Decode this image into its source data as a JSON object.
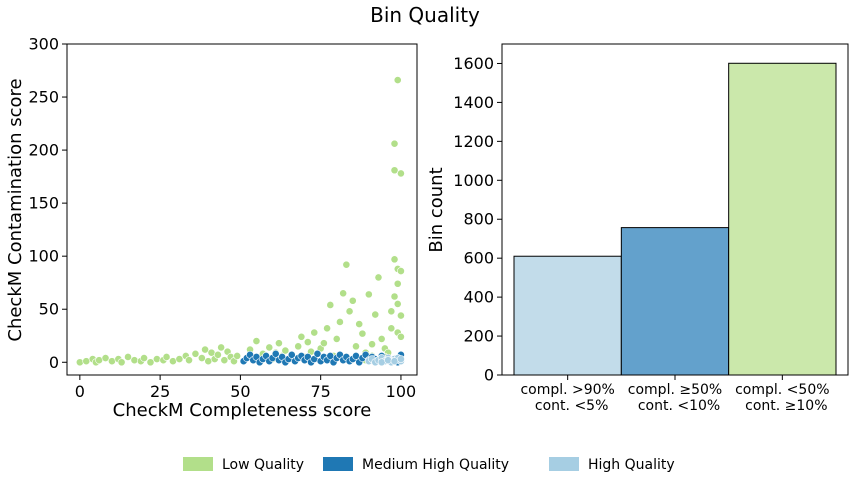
{
  "title": "Bin Quality",
  "colors": {
    "low": "#b2df8a",
    "medium": "#1f78b4",
    "high": "#a6cee3",
    "low_bar": "#cbe8ab",
    "medium_bar": "#63a1cc",
    "high_bar": "#c2dcea"
  },
  "legend": [
    {
      "label": "Low Quality",
      "color": "#b2df8a"
    },
    {
      "label": "Medium High Quality",
      "color": "#1f78b4"
    },
    {
      "label": "High Quality",
      "color": "#a6cee3"
    }
  ],
  "chart_data": [
    {
      "type": "scatter",
      "xlabel": "CheckM Completeness score",
      "ylabel": "CheckM Contamination score",
      "xlim": [
        -4,
        105
      ],
      "ylim": [
        -12,
        300
      ],
      "xticks": [
        "0",
        "25",
        "50",
        "75",
        "100"
      ],
      "yticks": [
        "0",
        "50",
        "100",
        "150",
        "200",
        "250",
        "300"
      ],
      "grid": false,
      "series": [
        {
          "name": "Low Quality",
          "color": "#b2df8a",
          "points": [
            [
              0,
              0
            ],
            [
              2,
              1
            ],
            [
              4,
              3
            ],
            [
              5,
              0
            ],
            [
              6,
              2
            ],
            [
              8,
              4
            ],
            [
              10,
              1
            ],
            [
              12,
              3
            ],
            [
              13,
              0
            ],
            [
              15,
              5
            ],
            [
              17,
              2
            ],
            [
              19,
              1
            ],
            [
              20,
              4
            ],
            [
              22,
              0
            ],
            [
              24,
              3
            ],
            [
              26,
              2
            ],
            [
              27,
              5
            ],
            [
              29,
              1
            ],
            [
              31,
              3
            ],
            [
              33,
              6
            ],
            [
              34,
              2
            ],
            [
              36,
              8
            ],
            [
              38,
              4
            ],
            [
              39,
              12
            ],
            [
              40,
              1
            ],
            [
              41,
              9
            ],
            [
              42,
              3
            ],
            [
              43,
              7
            ],
            [
              44,
              14
            ],
            [
              45,
              2
            ],
            [
              46,
              10
            ],
            [
              47,
              5
            ],
            [
              48,
              1
            ],
            [
              49,
              6
            ],
            [
              53,
              12
            ],
            [
              55,
              20
            ],
            [
              57,
              8
            ],
            [
              59,
              14
            ],
            [
              60,
              3
            ],
            [
              61,
              9
            ],
            [
              62,
              18
            ],
            [
              63,
              6
            ],
            [
              64,
              11
            ],
            [
              66,
              7
            ],
            [
              68,
              15
            ],
            [
              69,
              24
            ],
            [
              70,
              5
            ],
            [
              71,
              19
            ],
            [
              72,
              10
            ],
            [
              73,
              28
            ],
            [
              74,
              8
            ],
            [
              75,
              13
            ],
            [
              76,
              18
            ],
            [
              77,
              32
            ],
            [
              78,
              54
            ],
            [
              79,
              6
            ],
            [
              80,
              22
            ],
            [
              81,
              38
            ],
            [
              82,
              65
            ],
            [
              83,
              92
            ],
            [
              84,
              48
            ],
            [
              85,
              58
            ],
            [
              86,
              15
            ],
            [
              87,
              36
            ],
            [
              88,
              27
            ],
            [
              89,
              9
            ],
            [
              90,
              64
            ],
            [
              91,
              17
            ],
            [
              92,
              45
            ],
            [
              93,
              80
            ],
            [
              94,
              22
            ],
            [
              95,
              13
            ],
            [
              96,
              9
            ],
            [
              97,
              32
            ],
            [
              97,
              48
            ],
            [
              98,
              206
            ],
            [
              98,
              181
            ],
            [
              98,
              97
            ],
            [
              98,
              62
            ],
            [
              99,
              266
            ],
            [
              99,
              88
            ],
            [
              99,
              74
            ],
            [
              99,
              55
            ],
            [
              99,
              28
            ],
            [
              100,
              178
            ],
            [
              100,
              44
            ],
            [
              100,
              86
            ],
            [
              100,
              24
            ],
            [
              99,
              4
            ],
            [
              97,
              2
            ],
            [
              95,
              5
            ],
            [
              93,
              3
            ],
            [
              91,
              6
            ],
            [
              89,
              2
            ]
          ]
        },
        {
          "name": "Medium High Quality",
          "color": "#1f78b4",
          "points": [
            [
              51,
              1
            ],
            [
              52,
              4
            ],
            [
              53,
              7
            ],
            [
              54,
              2
            ],
            [
              55,
              5
            ],
            [
              56,
              0
            ],
            [
              57,
              3
            ],
            [
              58,
              6
            ],
            [
              59,
              1
            ],
            [
              60,
              4
            ],
            [
              61,
              8
            ],
            [
              62,
              2
            ],
            [
              63,
              5
            ],
            [
              64,
              0
            ],
            [
              65,
              3
            ],
            [
              66,
              7
            ],
            [
              67,
              1
            ],
            [
              68,
              4
            ],
            [
              69,
              6
            ],
            [
              70,
              2
            ],
            [
              71,
              5
            ],
            [
              72,
              0
            ],
            [
              73,
              3
            ],
            [
              74,
              8
            ],
            [
              75,
              1
            ],
            [
              76,
              5
            ],
            [
              77,
              2
            ],
            [
              78,
              6
            ],
            [
              79,
              0
            ],
            [
              80,
              4
            ],
            [
              81,
              7
            ],
            [
              82,
              2
            ],
            [
              83,
              5
            ],
            [
              84,
              1
            ],
            [
              85,
              3
            ],
            [
              86,
              6
            ],
            [
              87,
              0
            ],
            [
              88,
              4
            ],
            [
              89,
              7
            ],
            [
              90,
              2
            ],
            [
              91,
              5
            ],
            [
              92,
              3
            ],
            [
              93,
              1
            ],
            [
              94,
              6
            ],
            [
              95,
              2
            ],
            [
              96,
              4
            ],
            [
              97,
              1
            ],
            [
              98,
              3
            ],
            [
              99,
              0
            ],
            [
              100,
              7
            ]
          ]
        },
        {
          "name": "High Quality",
          "color": "#a6cee3",
          "points": [
            [
              90,
              1
            ],
            [
              91,
              3
            ],
            [
              92,
              0
            ],
            [
              93,
              2
            ],
            [
              94,
              4
            ],
            [
              95,
              1
            ],
            [
              96,
              3
            ],
            [
              97,
              0
            ],
            [
              98,
              2
            ],
            [
              99,
              4
            ],
            [
              100,
              1
            ],
            [
              94,
              0
            ],
            [
              96,
              2
            ],
            [
              98,
              1
            ],
            [
              100,
              3
            ]
          ]
        }
      ]
    },
    {
      "type": "bar",
      "ylabel": "Bin count",
      "xlabel": "",
      "ylim": [
        0,
        1700
      ],
      "yticks": [
        "0",
        "200",
        "400",
        "600",
        "800",
        "1000",
        "1200",
        "1400",
        "1600"
      ],
      "categories": [
        [
          "compl. >90%",
          "cont. <5%"
        ],
        [
          "compl. ≥50%",
          "cont. <10%"
        ],
        [
          "compl. <50%",
          "cont. ≥10%"
        ]
      ],
      "values": [
        610,
        757,
        1601
      ],
      "bar_colors": [
        "#c2dcea",
        "#63a1cc",
        "#cbe8ab"
      ],
      "grid": false
    }
  ]
}
